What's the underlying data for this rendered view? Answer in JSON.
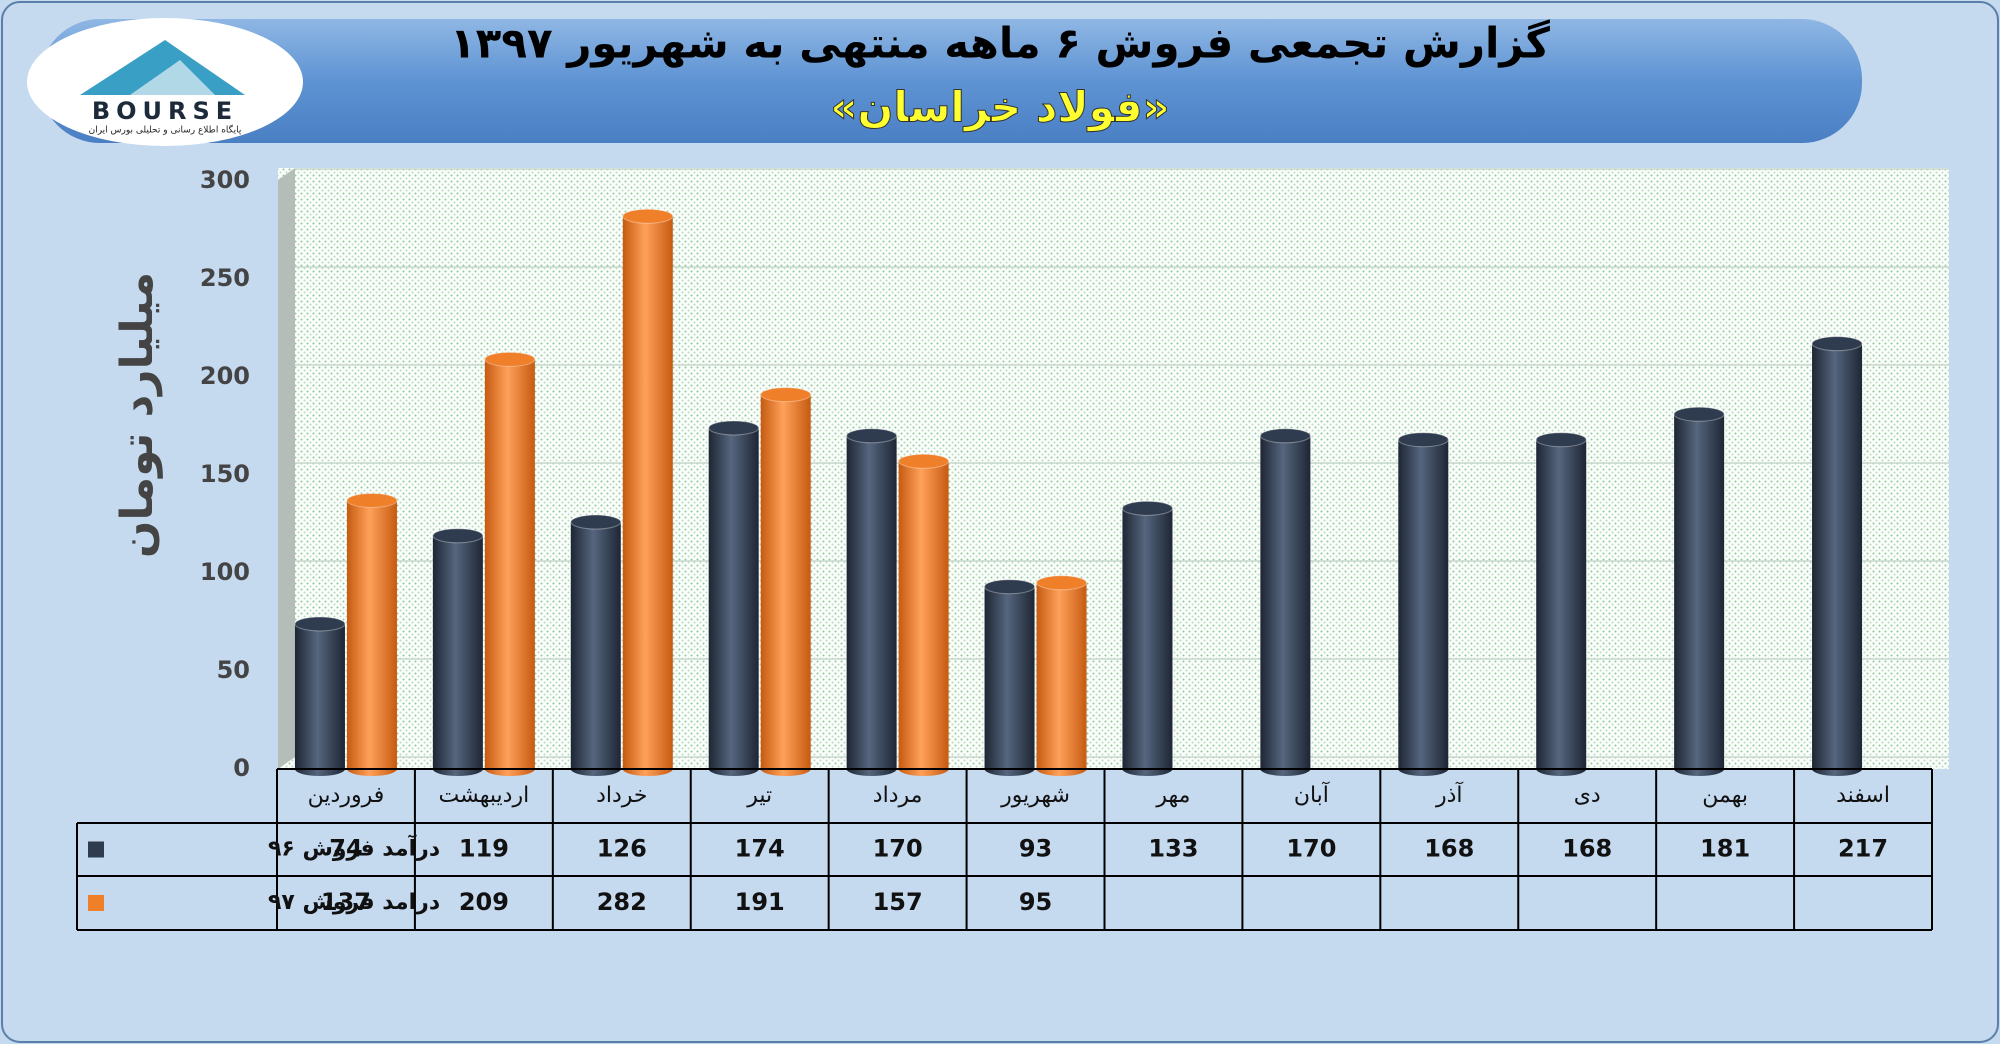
{
  "logo": {
    "name": "BOURSE",
    "tagline": "پایگاه اطلاع رسانی و تحلیلی بورس ایران"
  },
  "chart_data": {
    "type": "bar",
    "title": "گزارش تجمعی فروش ۶ ماهه منتهی به شهریور ۱۳۹۷",
    "subtitle": "«فولاد خراسان»",
    "y_label": "میلیارد تومان",
    "categories": [
      "فروردین",
      "اردیبهشت",
      "خرداد",
      "تیر",
      "مرداد",
      "شهریور",
      "مهر",
      "آبان",
      "آذر",
      "دی",
      "بهمن",
      "اسفند"
    ],
    "series": [
      {
        "name": "درآمد فروش ۹۶",
        "color": "#2f3b4e",
        "values": [
          74,
          119,
          126,
          174,
          170,
          93,
          133,
          170,
          168,
          168,
          181,
          217
        ]
      },
      {
        "name": "درامد فروش ۹۷",
        "color": "#f07f2a",
        "values": [
          137,
          209,
          282,
          191,
          157,
          95,
          null,
          null,
          null,
          null,
          null,
          null
        ]
      }
    ],
    "ylim": [
      0,
      300
    ],
    "yticks": [
      0,
      50,
      100,
      150,
      200,
      250,
      300
    ],
    "grid": true
  }
}
